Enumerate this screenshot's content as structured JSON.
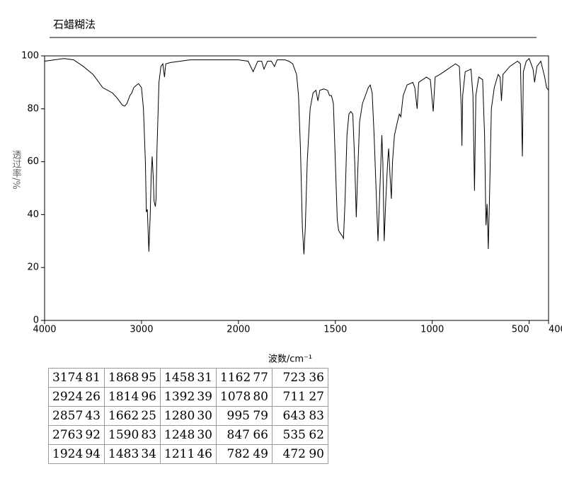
{
  "chart_data": {
    "type": "line",
    "title": "石蜡糊法",
    "xlabel": "波数/cm⁻¹",
    "ylabel": "透过率/%",
    "x": [
      4000,
      3900,
      3800,
      3700,
      3600,
      3500,
      3400,
      3300,
      3250,
      3200,
      3174,
      3150,
      3120,
      3100,
      3080,
      3050,
      3030,
      3000,
      2980,
      2960,
      2950,
      2940,
      2924,
      2910,
      2900,
      2890,
      2880,
      2870,
      2857,
      2850,
      2840,
      2820,
      2800,
      2780,
      2763,
      2750,
      2700,
      2600,
      2500,
      2400,
      2300,
      2200,
      2100,
      2000,
      1950,
      1924,
      1900,
      1880,
      1868,
      1850,
      1830,
      1814,
      1800,
      1760,
      1740,
      1720,
      1700,
      1690,
      1680,
      1670,
      1662,
      1655,
      1645,
      1630,
      1615,
      1600,
      1590,
      1580,
      1560,
      1540,
      1530,
      1520,
      1510,
      1500,
      1490,
      1483,
      1475,
      1465,
      1458,
      1450,
      1440,
      1430,
      1420,
      1410,
      1400,
      1392,
      1385,
      1375,
      1360,
      1340,
      1330,
      1320,
      1310,
      1300,
      1290,
      1280,
      1270,
      1260,
      1255,
      1248,
      1240,
      1230,
      1225,
      1218,
      1211,
      1205,
      1195,
      1180,
      1170,
      1162,
      1150,
      1130,
      1100,
      1090,
      1078,
      1070,
      1050,
      1030,
      1010,
      995,
      985,
      960,
      920,
      880,
      860,
      850,
      847,
      843,
      830,
      800,
      790,
      782,
      775,
      760,
      740,
      730,
      723,
      717,
      711,
      705,
      695,
      680,
      660,
      650,
      643,
      635,
      600,
      560,
      545,
      535,
      530,
      515,
      500,
      490,
      480,
      472,
      460,
      440,
      420,
      410,
      400
    ],
    "y": [
      98,
      98.5,
      99,
      98.5,
      96,
      93,
      88,
      86,
      84,
      81.5,
      81,
      82,
      85,
      86,
      88,
      89,
      89.5,
      88,
      80,
      60,
      41,
      42,
      26,
      40,
      55,
      62,
      55,
      45,
      43,
      46,
      65,
      90,
      96,
      97,
      92,
      97,
      97.5,
      98,
      98.5,
      98.5,
      98.5,
      98.5,
      98.5,
      98.5,
      98,
      94,
      98,
      98,
      95,
      98,
      98,
      96,
      98.5,
      98.5,
      98,
      97,
      93,
      85,
      65,
      35,
      25,
      35,
      60,
      80,
      86,
      87,
      83,
      87,
      87.5,
      87,
      85,
      85,
      82,
      60,
      38,
      34,
      33,
      32,
      31,
      45,
      70,
      78,
      79,
      78,
      60,
      39,
      55,
      75,
      82,
      86,
      88,
      89,
      86,
      70,
      50,
      30,
      50,
      70,
      60,
      30,
      45,
      60,
      65,
      55,
      46,
      60,
      70,
      75,
      78,
      77,
      85,
      89,
      90,
      88,
      80,
      90,
      91,
      92,
      91,
      79,
      92,
      93,
      95,
      97,
      96,
      80,
      66,
      85,
      94,
      95,
      85,
      49,
      85,
      92,
      91,
      70,
      36,
      44,
      27,
      45,
      80,
      88,
      93,
      92,
      83,
      93,
      96,
      98,
      97,
      62,
      94,
      98,
      99,
      97,
      95,
      90,
      96,
      98,
      92,
      88,
      87
    ],
    "color": "#000000",
    "xlim": [
      4000,
      400
    ],
    "xscale_break": 2000,
    "xscale_ratio": 2,
    "xticks": [
      4000,
      3000,
      2000,
      1500,
      1000,
      500,
      400
    ],
    "ylim": [
      0,
      100
    ],
    "yticks": [
      0,
      20,
      40,
      60,
      80,
      100
    ]
  },
  "table": {
    "columns": [
      [
        [
          3174,
          81
        ],
        [
          2924,
          26
        ],
        [
          2857,
          43
        ],
        [
          2763,
          92
        ],
        [
          1924,
          94
        ]
      ],
      [
        [
          1868,
          95
        ],
        [
          1814,
          96
        ],
        [
          1662,
          25
        ],
        [
          1590,
          83
        ],
        [
          1483,
          34
        ]
      ],
      [
        [
          1458,
          31
        ],
        [
          1392,
          39
        ],
        [
          1280,
          30
        ],
        [
          1248,
          30
        ],
        [
          1211,
          46
        ]
      ],
      [
        [
          1162,
          77
        ],
        [
          1078,
          80
        ],
        [
          995,
          79
        ],
        [
          847,
          66
        ],
        [
          782,
          49
        ]
      ],
      [
        [
          723,
          36
        ],
        [
          711,
          27
        ],
        [
          643,
          83
        ],
        [
          535,
          62
        ],
        [
          472,
          90
        ]
      ]
    ]
  }
}
